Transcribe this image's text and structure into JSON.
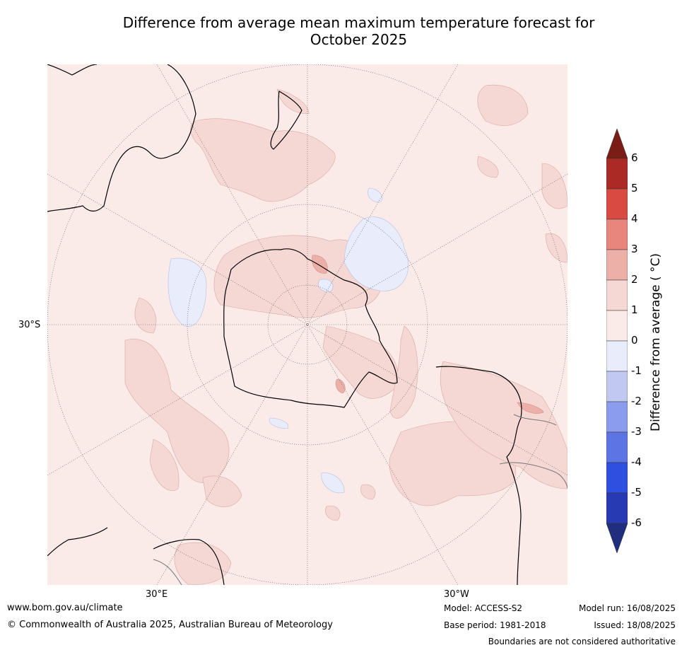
{
  "title_line1": "Difference from average mean maximum temperature forecast for",
  "title_line2": "October 2025",
  "map_labels": {
    "lat_label": "30°S",
    "lon_label_left": "30°E",
    "lon_label_right": "30°W"
  },
  "colorbar": {
    "title": "Difference from average ( °C)",
    "ticks": [
      "6",
      "5",
      "4",
      "3",
      "2",
      "1",
      "0",
      "-1",
      "-2",
      "-3",
      "-4",
      "-5",
      "-6"
    ],
    "colors": {
      "above_6": "#7a1d17",
      "5_6": "#ab2a25",
      "4_5": "#d94b42",
      "3_4": "#e8857c",
      "2_3": "#edb0a9",
      "1_2": "#f5d7d3",
      "0_1": "#fbebe8",
      "m1_0": "#e8ecfb",
      "m2_m1": "#c1c9f3",
      "m3_m2": "#8c9cec",
      "m4_m3": "#5d74e5",
      "m5_m4": "#2e4fe0",
      "m6_m5": "#273ab3",
      "below_m6": "#1f2f7d"
    }
  },
  "footer": {
    "website": "www.bom.gov.au/climate",
    "copyright": "© Commonwealth of Australia 2025, Australian Bureau of Meteorology",
    "model": "Model: ACCESS-S2",
    "base_period": "Base period: 1981-2018",
    "model_run": "Model run: 16/08/2025",
    "issued": "Issued: 18/08/2025",
    "disclaimer": "Boundaries are not considered authoritative"
  }
}
